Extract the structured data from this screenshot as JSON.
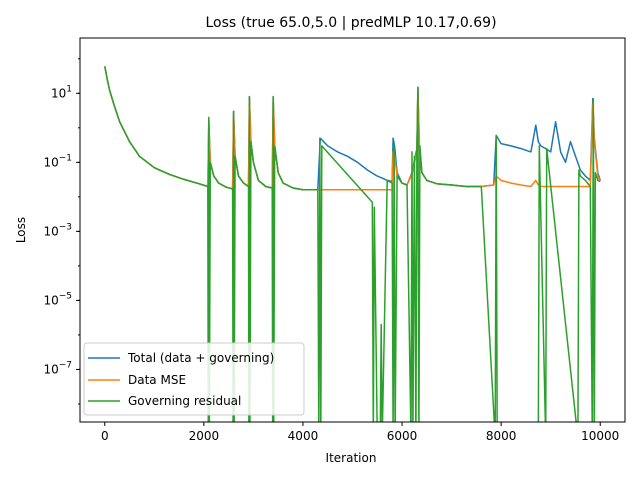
{
  "chart_data": {
    "type": "line",
    "title": "Loss (true 65.0,5.0 | predMLP 10.17,0.69)",
    "xlabel": "Iteration",
    "ylabel": "Loss",
    "yscale": "log",
    "xlim": [
      -500,
      10500
    ],
    "ylim": [
      3e-09,
      400
    ],
    "x_ticks": [
      0,
      2000,
      4000,
      6000,
      8000,
      10000
    ],
    "y_ticks": [
      {
        "base": "10",
        "exp": "1",
        "value": 10
      },
      {
        "base": "10",
        "exp": "−1",
        "value": 0.1
      },
      {
        "base": "10",
        "exp": "−3",
        "value": 0.001
      },
      {
        "base": "10",
        "exp": "−5",
        "value": 1e-05
      },
      {
        "base": "10",
        "exp": "−7",
        "value": 1e-07
      }
    ],
    "legend_position": "lower-left",
    "grid": false,
    "series": [
      {
        "name": "Total (data + governing)",
        "color": "#1f77b4",
        "x": [
          0,
          50,
          100,
          200,
          300,
          500,
          700,
          1000,
          1300,
          1600,
          1900,
          2080,
          2100,
          2130,
          2200,
          2300,
          2450,
          2580,
          2600,
          2630,
          2700,
          2800,
          2900,
          2920,
          2950,
          3000,
          3100,
          3250,
          3380,
          3400,
          3430,
          3500,
          3600,
          3800,
          4000,
          4200,
          4300,
          4350,
          4500,
          4700,
          4900,
          5100,
          5300,
          5500,
          5600,
          5700,
          5800,
          5820,
          5850,
          5900,
          6000,
          6100,
          6200,
          6300,
          6320,
          6350,
          6400,
          6500,
          6700,
          7000,
          7300,
          7600,
          7850,
          7900,
          8000,
          8200,
          8400,
          8600,
          8700,
          8750,
          8800,
          8900,
          9000,
          9100,
          9200,
          9300,
          9400,
          9500,
          9600,
          9700,
          9800,
          9850,
          9880,
          9950,
          10000
        ],
        "y": [
          60,
          25,
          12,
          4,
          1.5,
          0.4,
          0.15,
          0.07,
          0.045,
          0.032,
          0.024,
          0.02,
          1.8,
          0.1,
          0.04,
          0.025,
          0.019,
          0.017,
          3,
          0.15,
          0.04,
          0.025,
          0.02,
          8,
          0.4,
          0.1,
          0.03,
          0.02,
          0.018,
          8,
          0.3,
          0.05,
          0.025,
          0.018,
          0.016,
          0.016,
          0.016,
          0.5,
          0.3,
          0.2,
          0.15,
          0.1,
          0.06,
          0.04,
          0.035,
          0.03,
          0.028,
          0.5,
          0.3,
          0.05,
          0.025,
          0.022,
          0.05,
          0.25,
          15,
          0.3,
          0.05,
          0.03,
          0.024,
          0.022,
          0.02,
          0.02,
          0.022,
          0.6,
          0.35,
          0.3,
          0.25,
          0.2,
          1.2,
          0.4,
          0.3,
          0.25,
          0.2,
          1.5,
          0.2,
          0.1,
          0.4,
          0.15,
          0.06,
          0.04,
          0.03,
          7,
          0.5,
          0.05,
          0.03
        ]
      },
      {
        "name": "Data MSE",
        "color": "#ff7f0e",
        "x": [
          0,
          50,
          100,
          200,
          300,
          500,
          700,
          1000,
          1300,
          1600,
          1900,
          2080,
          2100,
          2130,
          2200,
          2300,
          2450,
          2580,
          2600,
          2630,
          2700,
          2800,
          2900,
          2920,
          2950,
          3000,
          3100,
          3250,
          3380,
          3400,
          3430,
          3500,
          3600,
          3800,
          4000,
          4200,
          4300,
          4350,
          4500,
          4700,
          4900,
          5100,
          5300,
          5500,
          5600,
          5700,
          5800,
          5820,
          5850,
          5900,
          6000,
          6100,
          6200,
          6300,
          6320,
          6350,
          6400,
          6500,
          6700,
          7000,
          7300,
          7600,
          7850,
          7900,
          8000,
          8200,
          8400,
          8600,
          8700,
          8750,
          8800,
          8900,
          9000,
          9100,
          9200,
          9300,
          9400,
          9500,
          9600,
          9700,
          9800,
          9850,
          9880,
          9950,
          10000
        ],
        "y": [
          60,
          25,
          12,
          4,
          1.5,
          0.4,
          0.15,
          0.07,
          0.045,
          0.032,
          0.024,
          0.02,
          1.5,
          0.1,
          0.04,
          0.025,
          0.019,
          0.017,
          2.5,
          0.15,
          0.04,
          0.025,
          0.02,
          7,
          0.4,
          0.1,
          0.03,
          0.02,
          0.018,
          7,
          0.3,
          0.05,
          0.025,
          0.018,
          0.016,
          0.016,
          0.016,
          0.016,
          0.016,
          0.016,
          0.016,
          0.016,
          0.016,
          0.016,
          0.016,
          0.016,
          0.016,
          0.2,
          0.15,
          0.04,
          0.025,
          0.022,
          0.045,
          0.2,
          12,
          0.25,
          0.05,
          0.03,
          0.024,
          0.022,
          0.02,
          0.02,
          0.022,
          0.04,
          0.03,
          0.025,
          0.022,
          0.02,
          0.03,
          0.022,
          0.02,
          0.02,
          0.02,
          0.02,
          0.02,
          0.02,
          0.02,
          0.02,
          0.02,
          0.02,
          0.02,
          5,
          0.4,
          0.04,
          0.028
        ]
      },
      {
        "name": "Governing residual",
        "color": "#2ca02c",
        "x": [
          0,
          50,
          100,
          200,
          300,
          500,
          700,
          1000,
          1300,
          1600,
          1900,
          2080,
          2090,
          2100,
          2110,
          2130,
          2200,
          2300,
          2450,
          2580,
          2590,
          2600,
          2610,
          2630,
          2700,
          2800,
          2900,
          2910,
          2920,
          2930,
          2950,
          3000,
          3100,
          3250,
          3380,
          3390,
          3400,
          3410,
          3430,
          3500,
          3600,
          3800,
          4000,
          4200,
          4300,
          4320,
          4340,
          4360,
          4380,
          5400,
          5420,
          5440,
          5500,
          5560,
          5580,
          5600,
          5700,
          5800,
          5820,
          5840,
          5860,
          5900,
          6000,
          6100,
          6180,
          6200,
          6220,
          6250,
          6280,
          6300,
          6320,
          6340,
          6360,
          6400,
          6500,
          6700,
          7000,
          7300,
          7600,
          7880,
          7900,
          7920,
          8750,
          8770,
          8900,
          8920,
          9550,
          9570,
          9600,
          9700,
          9800,
          9840,
          9860,
          9880,
          9900,
          9950,
          10000
        ],
        "y": [
          60,
          25,
          12,
          4,
          1.5,
          0.4,
          0.15,
          0.07,
          0.045,
          0.032,
          0.024,
          0.02,
          1e-09,
          2,
          1e-09,
          0.1,
          0.04,
          0.025,
          0.019,
          0.017,
          1e-09,
          3,
          1e-09,
          0.15,
          0.04,
          0.025,
          0.02,
          1e-09,
          8,
          1e-09,
          0.4,
          0.1,
          0.03,
          0.02,
          0.018,
          1e-09,
          8,
          1e-09,
          0.3,
          0.05,
          0.025,
          0.018,
          0.016,
          0.016,
          0.016,
          1e-09,
          0.5,
          1e-09,
          0.3,
          0.007,
          1e-09,
          0.005,
          1e-09,
          1e-09,
          2e-06,
          1e-09,
          0.03,
          0.025,
          1e-09,
          0.3,
          1e-09,
          0.04,
          0.025,
          0.022,
          1e-09,
          0.2,
          1e-09,
          0.15,
          1e-09,
          0.2,
          15,
          1e-09,
          0.3,
          0.05,
          0.03,
          0.024,
          0.022,
          0.02,
          0.02,
          1e-09,
          0.6,
          1e-09,
          1e-09,
          0.3,
          1e-09,
          0.25,
          1e-09,
          0.06,
          0.04,
          0.03,
          0.02,
          1e-09,
          7,
          1e-09,
          0.05,
          0.03,
          0.028
        ]
      }
    ]
  }
}
